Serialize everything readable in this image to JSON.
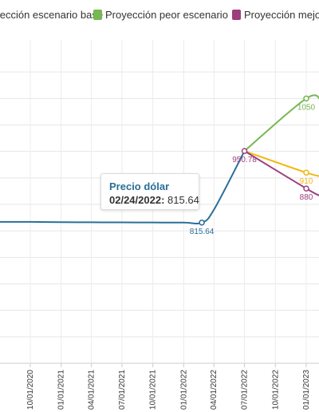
{
  "legend": {
    "items": [
      {
        "label": "Proyección escenario base",
        "color": "#f2b817"
      },
      {
        "label": "Proyección peor escenario",
        "color": "#76b852"
      },
      {
        "label": "Proyección mejor escenario",
        "color": "#9c3f7e"
      }
    ]
  },
  "tooltip": {
    "title": "Precio dólar",
    "date": "02/24/2022:",
    "value": "815.64"
  },
  "chart_data": {
    "type": "line",
    "x_ticks": [
      "10/01/2020",
      "01/01/2021",
      "04/01/2021",
      "07/01/2021",
      "10/01/2021",
      "01/01/2022",
      "04/01/2022",
      "07/01/2022",
      "10/01/2022",
      "01/01/2023"
    ],
    "ylim": [
      550,
      1150
    ],
    "grid": true,
    "series": [
      {
        "name": "Precio dólar",
        "color": "#2a6f97",
        "points": [
          {
            "x": "07/01/2020",
            "y": 817
          },
          {
            "x": "10/01/2020",
            "y": 817
          },
          {
            "x": "01/01/2021",
            "y": 816.5
          },
          {
            "x": "04/01/2021",
            "y": 816.2
          },
          {
            "x": "07/01/2021",
            "y": 816
          },
          {
            "x": "10/01/2021",
            "y": 815.8
          },
          {
            "x": "01/01/2022",
            "y": 815.7
          },
          {
            "x": "02/24/2022",
            "y": 815.64
          },
          {
            "x": "04/01/2022",
            "y": 840
          },
          {
            "x": "07/01/2022",
            "y": 950.78
          }
        ],
        "labeled": [
          {
            "x": "02/24/2022",
            "y": 815.64,
            "label": "815.64"
          }
        ]
      },
      {
        "name": "Proyección peor escenario",
        "color": "#76b852",
        "points": [
          {
            "x": "07/01/2022",
            "y": 950.78
          },
          {
            "x": "01/01/2023",
            "y": 1050
          },
          {
            "x": "02/15/2023",
            "y": 1045
          }
        ],
        "labeled": [
          {
            "x": "01/01/2023",
            "y": 1050,
            "label": "1050"
          }
        ]
      },
      {
        "name": "Proyección escenario base",
        "color": "#f2b817",
        "points": [
          {
            "x": "07/01/2022",
            "y": 950.78
          },
          {
            "x": "01/01/2023",
            "y": 910
          },
          {
            "x": "02/15/2023",
            "y": 903
          }
        ],
        "labeled": [
          {
            "x": "01/01/2023",
            "y": 910,
            "label": "910"
          }
        ]
      },
      {
        "name": "Proyección mejor escenario",
        "color": "#9c3f7e",
        "points": [
          {
            "x": "07/01/2022",
            "y": 950.78
          },
          {
            "x": "01/01/2023",
            "y": 880
          },
          {
            "x": "02/15/2023",
            "y": 865
          }
        ],
        "labeled": [
          {
            "x": "07/01/2022",
            "y": 950.78,
            "label": "950.78"
          },
          {
            "x": "01/01/2023",
            "y": 880,
            "label": "880"
          }
        ]
      }
    ]
  }
}
